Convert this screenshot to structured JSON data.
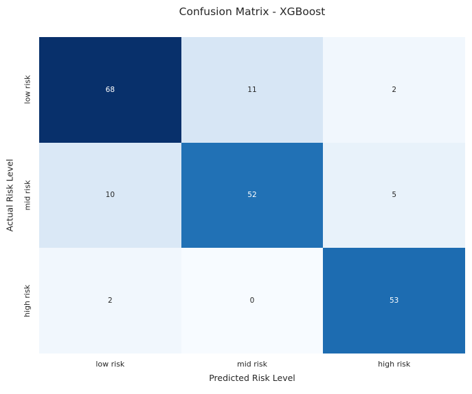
{
  "chart_data": {
    "type": "heatmap",
    "title": "Confusion Matrix - XGBoost",
    "xlabel": "Predicted Risk Level",
    "ylabel": "Actual Risk Level",
    "x_categories": [
      "low risk",
      "mid risk",
      "high risk"
    ],
    "y_categories": [
      "low risk",
      "mid risk",
      "high risk"
    ],
    "matrix": [
      [
        68,
        11,
        2
      ],
      [
        10,
        52,
        5
      ],
      [
        2,
        0,
        53
      ]
    ],
    "value_range": [
      0,
      68
    ],
    "colormap": "Blues",
    "legend": "none",
    "grid": false,
    "colors": {
      "background": "#ffffff",
      "text": "#262626",
      "cell_colors": [
        [
          "#08306b",
          "#d7e6f5",
          "#f1f7fd"
        ],
        [
          "#dae8f6",
          "#2171b5",
          "#e8f2fa"
        ],
        [
          "#f1f7fd",
          "#f7fbff",
          "#1d6cb1"
        ]
      ],
      "cell_text_colors": [
        [
          "#ffffff",
          "#262626",
          "#262626"
        ],
        [
          "#262626",
          "#ffffff",
          "#262626"
        ],
        [
          "#262626",
          "#262626",
          "#ffffff"
        ]
      ]
    }
  }
}
